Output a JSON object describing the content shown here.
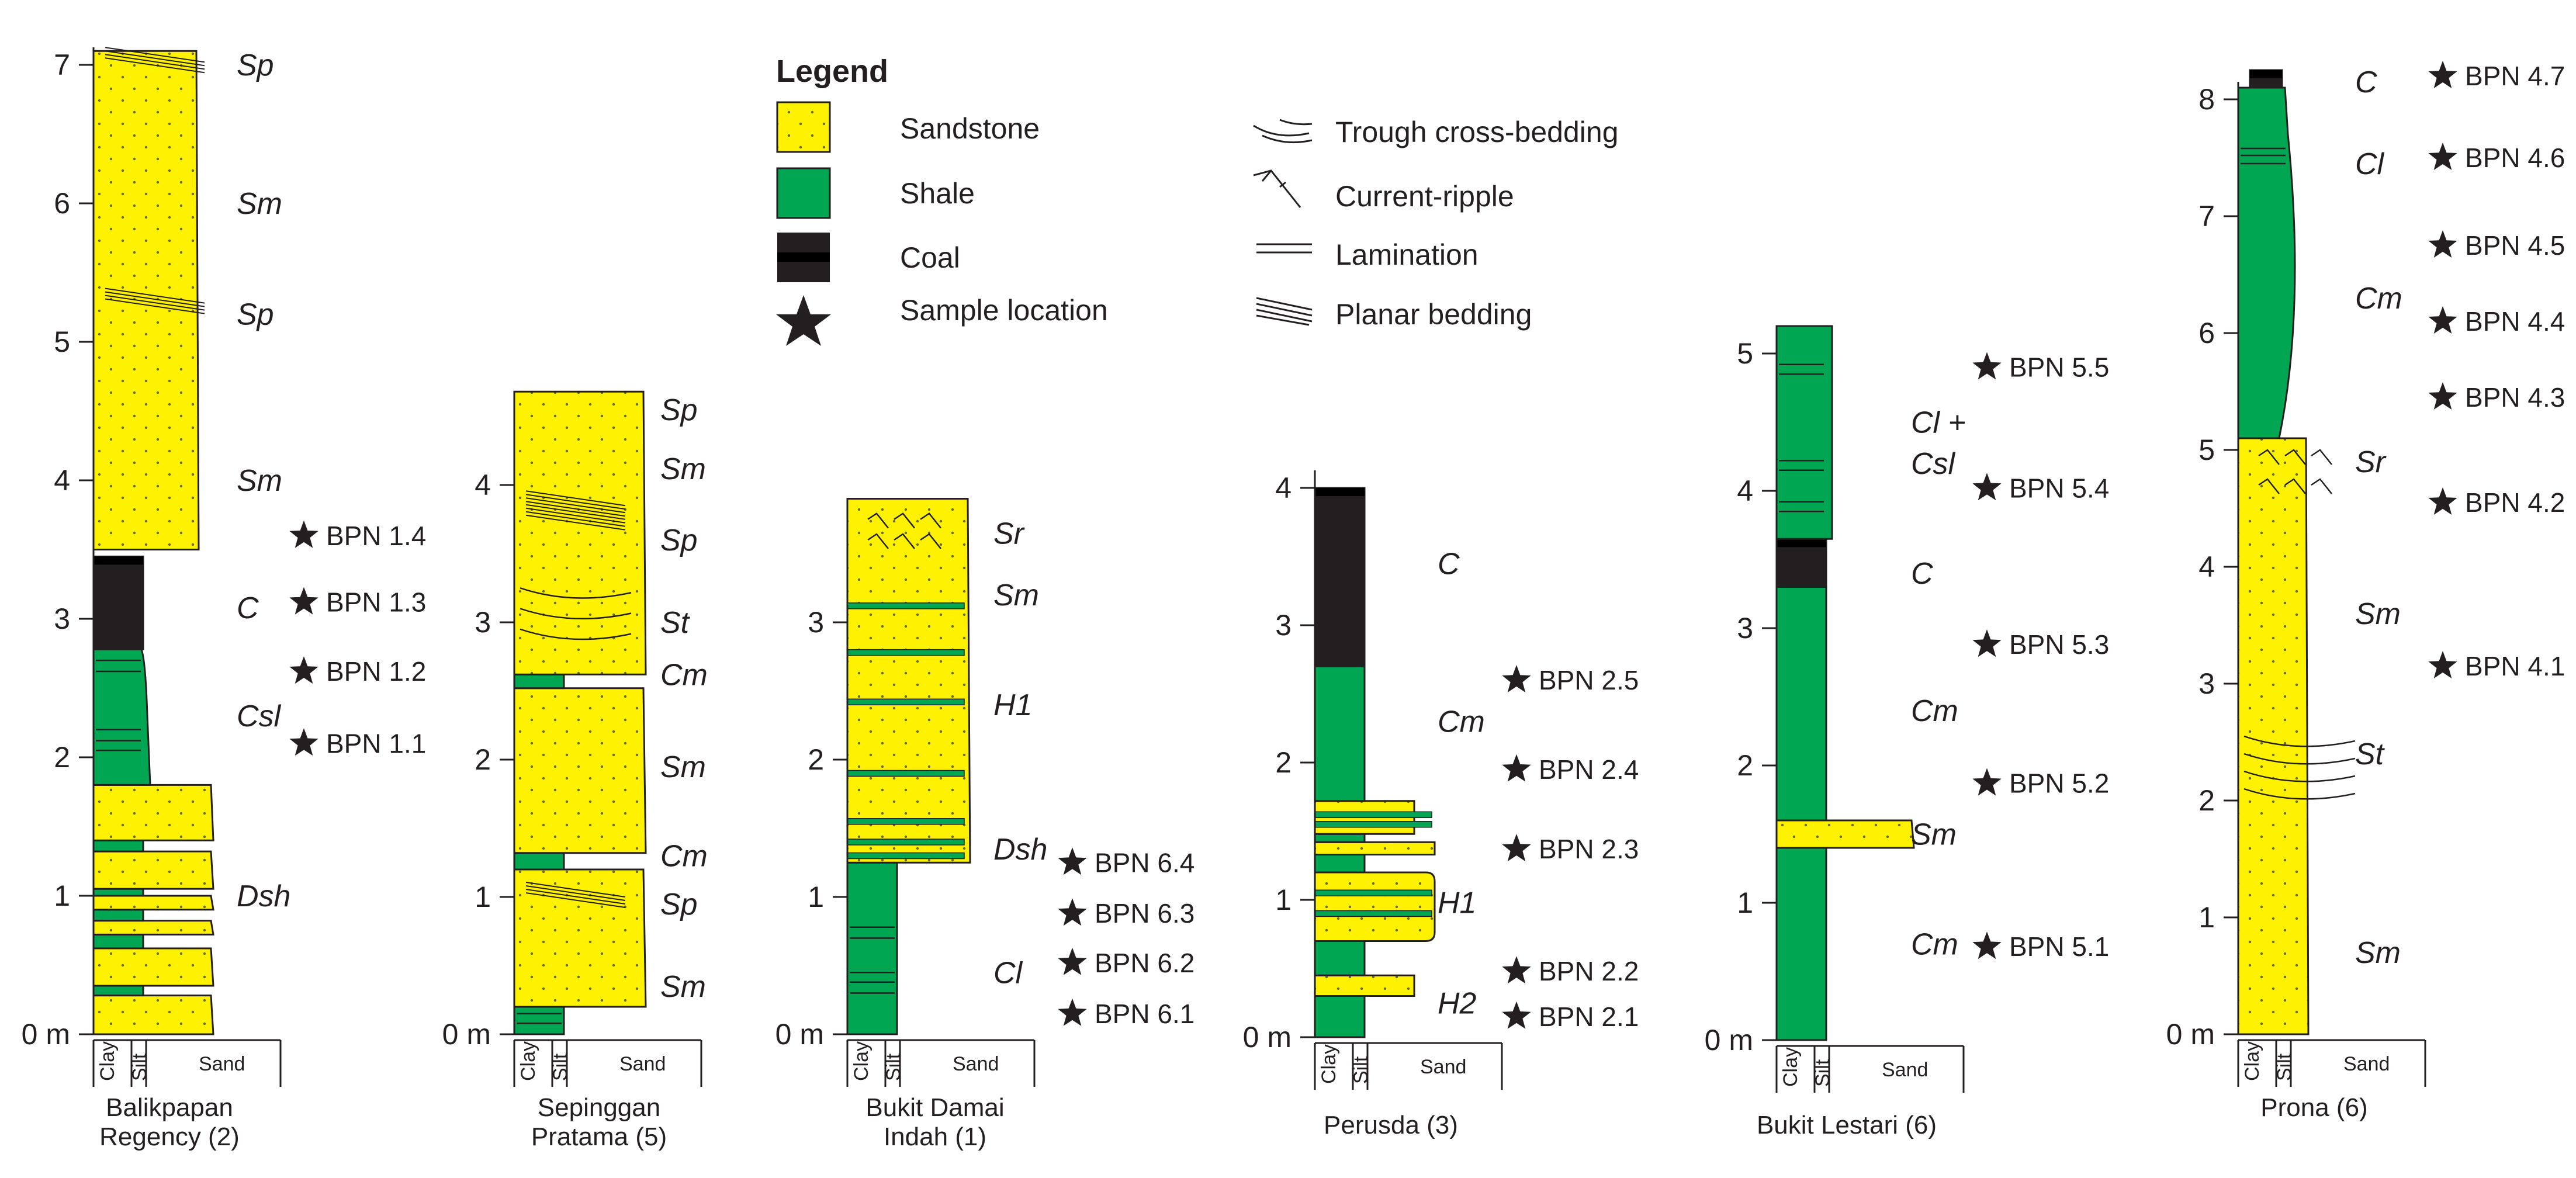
{
  "legend": {
    "title": "Legend",
    "items": [
      {
        "key": "sandstone",
        "label": "Sandstone",
        "color": "#fff200"
      },
      {
        "key": "shale",
        "label": "Shale",
        "color": "#00a651"
      },
      {
        "key": "coal",
        "label": "Coal",
        "color": "#231f20"
      },
      {
        "key": "sample",
        "label": "Sample location",
        "icon": "star-icon"
      },
      {
        "key": "trough",
        "label": "Trough cross-bedding",
        "icon": "trough-cross-bedding-icon"
      },
      {
        "key": "ripple",
        "label": "Current-ripple",
        "icon": "current-ripple-icon"
      },
      {
        "key": "lamination",
        "label": "Lamination",
        "icon": "lamination-icon"
      },
      {
        "key": "planar",
        "label": "Planar bedding",
        "icon": "planar-bedding-icon"
      }
    ]
  },
  "colors": {
    "sandstone": "#fff200",
    "shale": "#00a651",
    "coal": "#231f20",
    "line": "#231f20"
  },
  "grain_labels": [
    "Clay",
    "Silt",
    "Sand"
  ],
  "axis_unit_label": "0 m",
  "sections": [
    {
      "id": "balikpapan-regency",
      "name_lines": [
        "Balikpapan",
        "Regency (2)"
      ],
      "ticks": [
        0,
        1,
        2,
        3,
        4,
        5,
        6,
        7
      ],
      "beds": [
        {
          "base": 0,
          "top": 0.28,
          "lith": "sand",
          "grain": "sand"
        },
        {
          "base": 0.28,
          "top": 0.35,
          "lith": "shale",
          "grain": "clay"
        },
        {
          "base": 0.35,
          "top": 0.62,
          "lith": "sand",
          "grain": "sand"
        },
        {
          "base": 0.62,
          "top": 0.72,
          "lith": "shale",
          "grain": "clay"
        },
        {
          "base": 0.72,
          "top": 0.82,
          "lith": "sand",
          "grain": "sand"
        },
        {
          "base": 0.82,
          "top": 0.9,
          "lith": "shale",
          "grain": "clay"
        },
        {
          "base": 0.9,
          "top": 1.0,
          "lith": "sand",
          "grain": "sand"
        },
        {
          "base": 1.0,
          "top": 1.05,
          "lith": "shale",
          "grain": "clay"
        },
        {
          "base": 1.05,
          "top": 1.32,
          "lith": "sand",
          "grain": "sand"
        },
        {
          "base": 1.32,
          "top": 1.4,
          "lith": "shale",
          "grain": "clay"
        },
        {
          "base": 1.4,
          "top": 1.8,
          "lith": "sand",
          "grain": "sand"
        },
        {
          "base": 1.8,
          "top": 2.78,
          "lith": "shale",
          "grain": "clay_bulge"
        },
        {
          "base": 2.78,
          "top": 3.45,
          "lith": "coal",
          "grain": "clay_full"
        },
        {
          "base": 3.5,
          "top": 7.1,
          "lith": "sand",
          "grain": "sand"
        }
      ],
      "structures": [
        {
          "type": "lamination",
          "depths": [
            2.05,
            2.12,
            2.2,
            2.62,
            2.7
          ]
        },
        {
          "type": "planar",
          "depths": [
            5.28,
            7.02
          ]
        }
      ],
      "facies": [
        {
          "label": "Sp",
          "depth": 7.0
        },
        {
          "label": "Sm",
          "depth": 6.0
        },
        {
          "label": "Sp",
          "depth": 5.2
        },
        {
          "label": "Sm",
          "depth": 4.0
        },
        {
          "label": "C",
          "depth": 3.08
        },
        {
          "label": "Csl",
          "depth": 2.3
        },
        {
          "label": "Dsh",
          "depth": 1.0
        }
      ],
      "samples": [
        {
          "label": "BPN 1.4",
          "depth": 3.6
        },
        {
          "label": "BPN 1.3",
          "depth": 3.12
        },
        {
          "label": "BPN 1.2",
          "depth": 2.62
        },
        {
          "label": "BPN 1.1",
          "depth": 2.1
        }
      ]
    },
    {
      "id": "sepinggan-pratama",
      "name_lines": [
        "Sepinggan",
        "Pratama (5)"
      ],
      "ticks": [
        0,
        1,
        2,
        3,
        4
      ],
      "beds": [
        {
          "base": 0,
          "top": 0.2,
          "lith": "shale",
          "grain": "clay"
        },
        {
          "base": 0.2,
          "top": 1.2,
          "lith": "sand",
          "grain": "sand"
        },
        {
          "base": 1.2,
          "top": 1.32,
          "lith": "shale",
          "grain": "clay"
        },
        {
          "base": 1.32,
          "top": 2.52,
          "lith": "sand",
          "grain": "sand"
        },
        {
          "base": 2.52,
          "top": 2.62,
          "lith": "shale",
          "grain": "clay"
        },
        {
          "base": 2.62,
          "top": 4.68,
          "lith": "sand",
          "grain": "sand"
        }
      ],
      "structures": [
        {
          "type": "trough",
          "depths": [
            2.95,
            3.1,
            3.25
          ]
        },
        {
          "type": "planar",
          "depths": [
            3.75,
            3.85,
            1.0
          ]
        },
        {
          "type": "lamination",
          "depths": [
            0.08,
            0.15
          ]
        }
      ],
      "facies": [
        {
          "label": "Sp",
          "depth": 4.55
        },
        {
          "label": "Sm",
          "depth": 4.12
        },
        {
          "label": "Sp",
          "depth": 3.6
        },
        {
          "label": "St",
          "depth": 3.0
        },
        {
          "label": "Cm",
          "depth": 2.62
        },
        {
          "label": "Sm",
          "depth": 1.95
        },
        {
          "label": "Cm",
          "depth": 1.3
        },
        {
          "label": "Sp",
          "depth": 0.95
        },
        {
          "label": "Sm",
          "depth": 0.35
        }
      ],
      "samples": []
    },
    {
      "id": "bukit-damai-indah",
      "name_lines": [
        "Bukit Damai",
        "Indah (1)"
      ],
      "ticks": [
        0,
        1,
        2,
        3
      ],
      "beds": [
        {
          "base": 0,
          "top": 1.25,
          "lith": "shale",
          "grain": "clay"
        },
        {
          "base": 1.25,
          "top": 3.9,
          "lith": "sand",
          "grain": "sand"
        }
      ],
      "structures": [
        {
          "type": "lamination",
          "depths": [
            0.3,
            0.38,
            0.45,
            0.7,
            0.78
          ]
        },
        {
          "type": "shale-stripe",
          "depths": [
            1.3,
            1.4,
            1.55,
            1.9,
            2.42,
            2.78,
            3.12
          ]
        },
        {
          "type": "ripple",
          "depths": [
            3.6,
            3.75
          ]
        }
      ],
      "facies": [
        {
          "label": "Sr",
          "depth": 3.65
        },
        {
          "label": "Sm",
          "depth": 3.2
        },
        {
          "label": "H1",
          "depth": 2.4
        },
        {
          "label": "Dsh",
          "depth": 1.35
        },
        {
          "label": "Cl",
          "depth": 0.45
        }
      ],
      "samples": [
        {
          "label": "BPN 6.4",
          "depth": 1.25
        },
        {
          "label": "BPN 6.3",
          "depth": 0.88
        },
        {
          "label": "BPN 6.2",
          "depth": 0.52
        },
        {
          "label": "BPN 6.1",
          "depth": 0.15
        }
      ]
    },
    {
      "id": "perusda",
      "name_lines": [
        "Perusda (3)"
      ],
      "ticks": [
        0,
        1,
        2,
        3,
        4
      ],
      "beds": [
        {
          "base": 0,
          "top": 0.3,
          "lith": "shale",
          "grain": "clay"
        },
        {
          "base": 0.3,
          "top": 0.45,
          "lith": "sand",
          "grain": "silt"
        },
        {
          "base": 0.45,
          "top": 0.7,
          "lith": "shale",
          "grain": "clay"
        },
        {
          "base": 0.7,
          "top": 1.2,
          "lith": "sand",
          "grain": "sand_rounded"
        },
        {
          "base": 1.2,
          "top": 1.33,
          "lith": "shale",
          "grain": "clay"
        },
        {
          "base": 1.33,
          "top": 1.42,
          "lith": "sand",
          "grain": "sand"
        },
        {
          "base": 1.42,
          "top": 1.48,
          "lith": "shale",
          "grain": "clay"
        },
        {
          "base": 1.48,
          "top": 1.72,
          "lith": "sand",
          "grain": "silt"
        },
        {
          "base": 1.72,
          "top": 2.7,
          "lith": "shale",
          "grain": "clay"
        },
        {
          "base": 2.7,
          "top": 4.0,
          "lith": "coal",
          "grain": "clay"
        }
      ],
      "structures": [
        {
          "type": "shale-stripe",
          "depths": [
            0.9,
            1.05,
            1.55,
            1.62
          ]
        }
      ],
      "facies": [
        {
          "label": "C",
          "depth": 3.45
        },
        {
          "label": "Cm",
          "depth": 2.3
        },
        {
          "label": "H1",
          "depth": 0.98
        },
        {
          "label": "H2",
          "depth": 0.25
        }
      ],
      "samples": [
        {
          "label": "BPN 2.5",
          "depth": 2.6
        },
        {
          "label": "BPN 2.4",
          "depth": 1.95
        },
        {
          "label": "BPN 2.3",
          "depth": 1.37
        },
        {
          "label": "BPN 2.2",
          "depth": 0.48
        },
        {
          "label": "BPN 2.1",
          "depth": 0.15
        }
      ]
    },
    {
      "id": "bukit-lestari",
      "name_lines": [
        "Bukit Lestari (6)"
      ],
      "ticks": [
        0,
        1,
        2,
        3,
        4,
        5
      ],
      "beds": [
        {
          "base": 0,
          "top": 1.4,
          "lith": "shale",
          "grain": "clay"
        },
        {
          "base": 1.4,
          "top": 1.6,
          "lith": "sand",
          "grain": "sand"
        },
        {
          "base": 1.6,
          "top": 3.3,
          "lith": "shale",
          "grain": "clay"
        },
        {
          "base": 3.3,
          "top": 3.65,
          "lith": "coal",
          "grain": "clay"
        },
        {
          "base": 3.65,
          "top": 5.2,
          "lith": "shale",
          "grain": "clay_plus"
        }
      ],
      "structures": [
        {
          "type": "lamination",
          "depths": [
            3.85,
            3.92,
            4.15,
            4.22,
            4.85,
            4.92
          ]
        }
      ],
      "facies": [
        {
          "label": "Cl +",
          "depth": 4.5
        },
        {
          "label": "Csl",
          "depth": 4.2
        },
        {
          "label": "C",
          "depth": 3.4
        },
        {
          "label": "Cm",
          "depth": 2.4
        },
        {
          "label": "Sm",
          "depth": 1.5
        },
        {
          "label": "Cm",
          "depth": 0.7
        }
      ],
      "samples": [
        {
          "label": "BPN 5.5",
          "depth": 4.9
        },
        {
          "label": "BPN 5.4",
          "depth": 4.02
        },
        {
          "label": "BPN 5.3",
          "depth": 2.88
        },
        {
          "label": "BPN 5.2",
          "depth": 1.87
        },
        {
          "label": "BPN 5.1",
          "depth": 0.68
        }
      ]
    },
    {
      "id": "prona",
      "name_lines": [
        "Prona (6)"
      ],
      "ticks": [
        0,
        1,
        2,
        3,
        4,
        5,
        6,
        7,
        8
      ],
      "beds": [
        {
          "base": 0,
          "top": 5.1,
          "lith": "sand",
          "grain": "sand"
        },
        {
          "base": 5.1,
          "top": 8.1,
          "lith": "shale",
          "grain": "shale_bulge"
        },
        {
          "base": 8.1,
          "top": 8.25,
          "lith": "coal",
          "grain": "silt_narrow"
        }
      ],
      "structures": [
        {
          "type": "trough",
          "depths": [
            2.1,
            2.25,
            2.4,
            2.55
          ]
        },
        {
          "type": "ripple",
          "depths": [
            4.7,
            4.95
          ]
        },
        {
          "type": "lamination",
          "depths": [
            7.45,
            7.52,
            7.58
          ]
        }
      ],
      "facies": [
        {
          "label": "C",
          "depth": 8.15
        },
        {
          "label": "Cl",
          "depth": 7.45
        },
        {
          "label": "Cm",
          "depth": 6.3
        },
        {
          "label": "Sr",
          "depth": 4.9
        },
        {
          "label": "Sm",
          "depth": 3.6
        },
        {
          "label": "St",
          "depth": 2.4
        },
        {
          "label": "Sm",
          "depth": 0.7
        }
      ],
      "samples": [
        {
          "label": "BPN 4.7",
          "depth": 8.2
        },
        {
          "label": "BPN 4.6",
          "depth": 7.5
        },
        {
          "label": "BPN 4.5",
          "depth": 6.75
        },
        {
          "label": "BPN 4.4",
          "depth": 6.1
        },
        {
          "label": "BPN 4.3",
          "depth": 5.45
        },
        {
          "label": "BPN 4.2",
          "depth": 4.55
        },
        {
          "label": "BPN 4.1",
          "depth": 3.15
        }
      ]
    }
  ]
}
